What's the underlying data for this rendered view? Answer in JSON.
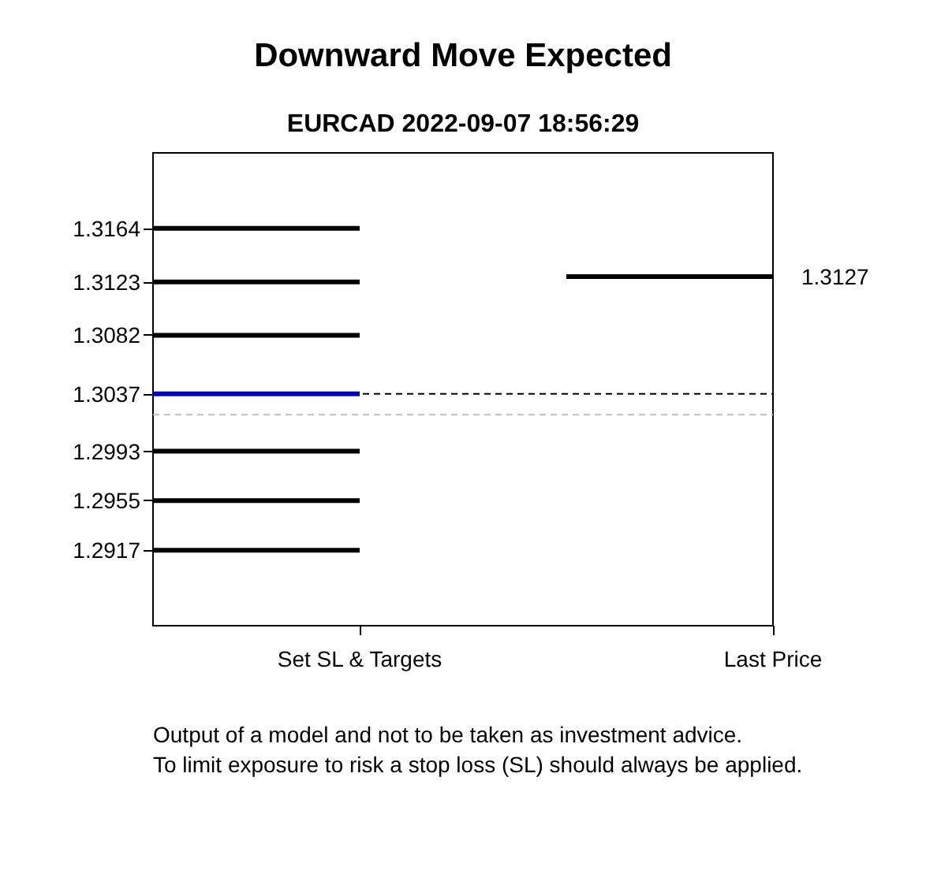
{
  "chart_data": {
    "type": "line",
    "title": "Downward Move Expected",
    "subtitle": "EURCAD 2022-09-07 18:56:29",
    "categories": [
      null,
      "Set SL & Targets",
      null,
      "Last Price"
    ],
    "series": [
      {
        "color": "#000000",
        "values": [
          1.3164,
          1.3164,
          null,
          null
        ]
      },
      {
        "color": "#000000",
        "values": [
          1.3123,
          1.3123,
          null,
          null
        ]
      },
      {
        "color": "#000000",
        "values": [
          1.3082,
          1.3082,
          null,
          null
        ]
      },
      {
        "color": "#0000cd",
        "values": [
          1.3037,
          1.3037,
          null,
          null
        ]
      },
      {
        "color": "#000000",
        "values": [
          1.2993,
          1.2993,
          null,
          null
        ]
      },
      {
        "color": "#000000",
        "values": [
          1.2955,
          1.2955,
          null,
          null
        ]
      },
      {
        "color": "#000000",
        "values": [
          1.2917,
          1.2917,
          null,
          null
        ]
      },
      {
        "color": "#000000",
        "values": [
          null,
          null,
          1.3127,
          1.3127
        ],
        "value_labels": [
          null,
          null,
          null,
          "1.3127"
        ]
      }
    ],
    "ylim": [
      1.2859,
      1.3222
    ],
    "yticks": [
      1.3164,
      1.3123,
      1.3082,
      1.3037,
      1.2993,
      1.2955,
      1.2917
    ],
    "ref_lines": [
      {
        "axis": "y",
        "value": 1.3037,
        "color": "#000000",
        "line_style": "dashed"
      },
      {
        "axis": "y",
        "value": 1.3021,
        "color": "#bebebe",
        "line_style": "dashed"
      }
    ],
    "marker": "none",
    "line_style": "solid",
    "grid": false,
    "annotations": [
      "Output of a model and not to be taken as investment advice.",
      "To limit exposure to risk a stop loss (SL) should always be applied."
    ]
  }
}
